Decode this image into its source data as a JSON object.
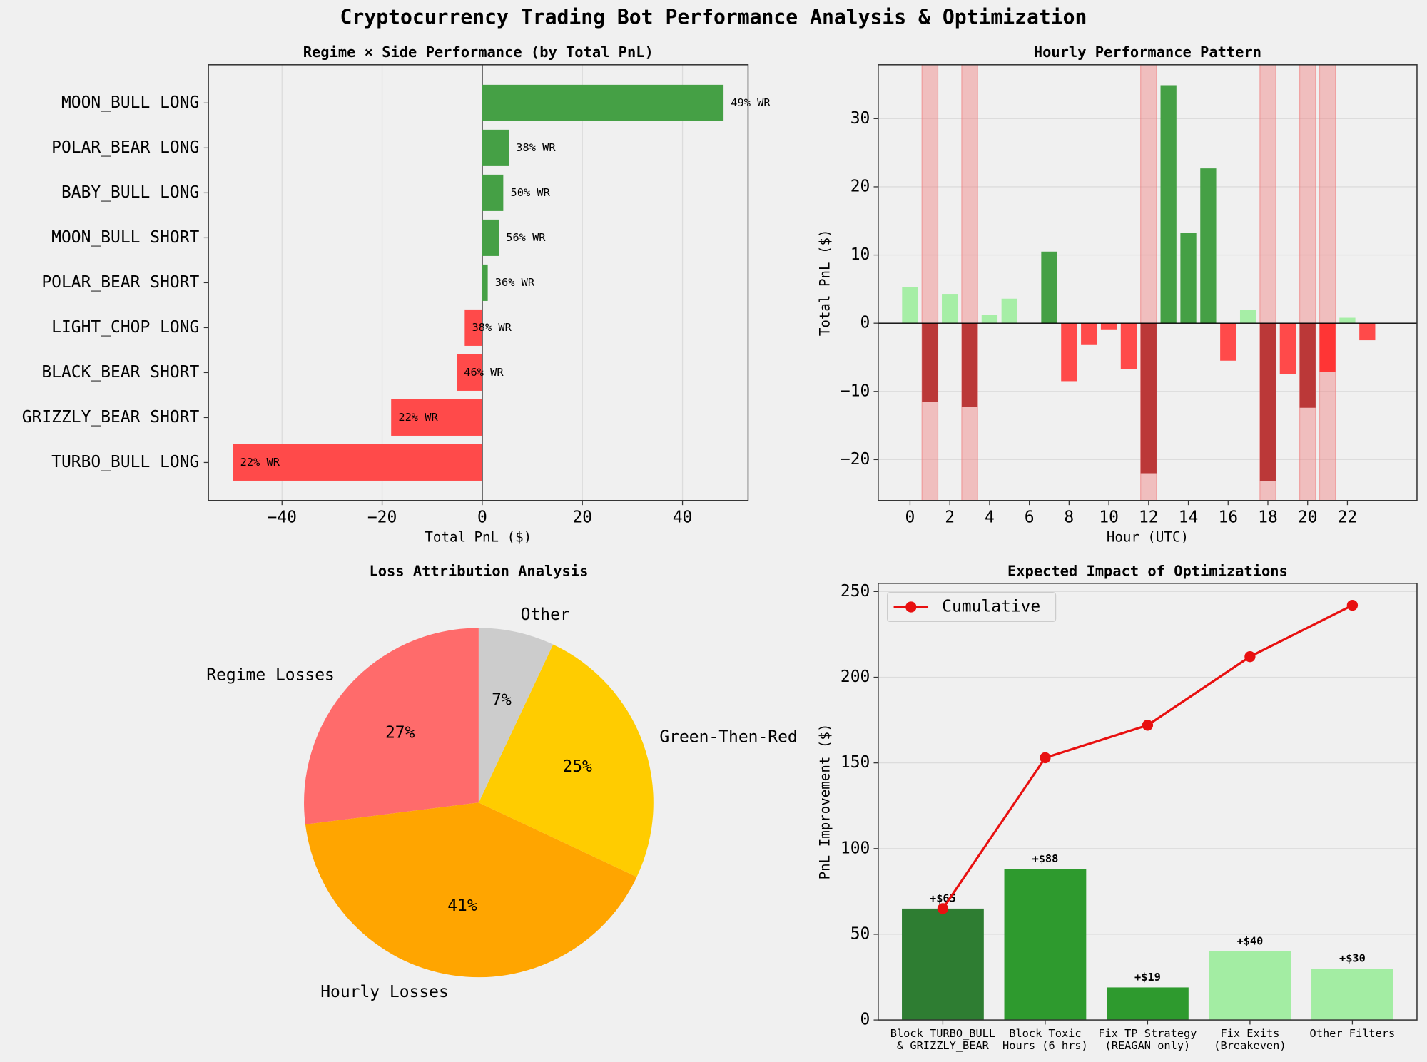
{
  "title": "Cryptocurrency Trading Bot Performance Analysis & Optimization",
  "chart_data": [
    {
      "type": "hbar",
      "title": "Regime × Side Performance (by Total PnL)",
      "xlabel": "Total PnL ($)",
      "categories": [
        "MOON_BULL LONG",
        "POLAR_BEAR LONG",
        "BABY_BULL LONG",
        "MOON_BULL SHORT",
        "POLAR_BEAR SHORT",
        "LIGHT_CHOP LONG",
        "BLACK_BEAR SHORT",
        "GRIZZLY_BEAR SHORT",
        "TURBO_BULL LONG"
      ],
      "values": [
        48.2,
        5.3,
        4.2,
        3.3,
        1.1,
        -3.5,
        -5.1,
        -18.2,
        -49.8
      ],
      "bar_labels": [
        "49% WR",
        "38% WR",
        "50% WR",
        "56% WR",
        "36% WR",
        "38% WR",
        "46% WR",
        "22% WR",
        "22% WR"
      ],
      "positive_color": "#45a045",
      "negative_color": "#ff4a4a",
      "xlim": [
        -54.7,
        53.1
      ],
      "xticks": [
        {
          "value": -40,
          "label": "−40"
        },
        {
          "value": -20,
          "label": "−20"
        },
        0,
        20,
        40
      ],
      "grid": true
    },
    {
      "type": "bar",
      "title": "Hourly Performance Pattern",
      "xlabel": "Hour (UTC)",
      "ylabel": "Total PnL ($)",
      "x": [
        0,
        1,
        2,
        3,
        4,
        5,
        6,
        7,
        8,
        9,
        10,
        11,
        12,
        13,
        14,
        15,
        16,
        17,
        18,
        19,
        20,
        21,
        22,
        23
      ],
      "values": [
        5.3,
        -11.5,
        4.3,
        -12.3,
        1.2,
        3.6,
        0,
        10.5,
        -8.5,
        -3.2,
        -0.9,
        -6.7,
        -22,
        34.9,
        13.2,
        22.7,
        -5.5,
        1.9,
        -23.1,
        -7.5,
        -12.4,
        -7.1,
        0.8,
        -2.5
      ],
      "colors": [
        "#a6eea6",
        "#bb3838",
        "#a6eea6",
        "#bb3838",
        "#a6eea6",
        "#a6eea6",
        "#a6eea6",
        "#45a045",
        "#ff4a4a",
        "#ff4a4a",
        "#ff4a4a",
        "#ff4a4a",
        "#bb3838",
        "#45a045",
        "#45a045",
        "#45a045",
        "#ff4a4a",
        "#a6eea6",
        "#bb3838",
        "#ff4a4a",
        "#bb3838",
        "#ff3535",
        "#a6eea6",
        "#ff4a4a"
      ],
      "highlight_hours": [
        1,
        3,
        12,
        18,
        20,
        21
      ],
      "highlight_color": "#f08080",
      "xlim": [
        -1.6,
        25.5
      ],
      "xticks": [
        0,
        2,
        4,
        6,
        8,
        10,
        12,
        14,
        16,
        18,
        20,
        22
      ],
      "ylim": [
        -26,
        37.9
      ],
      "yticks": [
        {
          "value": -20,
          "label": "−20"
        },
        {
          "value": -10,
          "label": "−10"
        },
        0,
        10,
        20,
        30
      ],
      "grid": true
    },
    {
      "type": "pie",
      "title": "Loss Attribution Analysis",
      "categories": [
        "Regime Losses",
        "Hourly Losses",
        "Green-Then-Red",
        "Other"
      ],
      "values": [
        27,
        41,
        25,
        7
      ],
      "value_labels": [
        "27%",
        "41%",
        "25%",
        "7%"
      ],
      "colors": [
        "#ff6b6b",
        "#ffa500",
        "#ffcc00",
        "#cccccc"
      ]
    },
    {
      "type": "bar_line",
      "title": "Expected Impact of Optimizations",
      "ylabel": "PnL Improvement ($)",
      "categories": [
        [
          "Block TURBO_BULL",
          "& GRIZZLY_BEAR"
        ],
        [
          "Block Toxic",
          "Hours (6 hrs)"
        ],
        [
          "Fix TP Strategy",
          "(REAGAN only)"
        ],
        [
          "Fix Exits",
          "(Breakeven)"
        ],
        [
          "Other Filters"
        ]
      ],
      "values": [
        65,
        88,
        19,
        40,
        30
      ],
      "value_labels": [
        "+$65",
        "+$88",
        "+$19",
        "+$40",
        "+$30"
      ],
      "colors": [
        "#2e7d32",
        "#2e9a2e",
        "#2e9a2e",
        "#a3eda3",
        "#a3eda3"
      ],
      "series": [
        {
          "name": "Cumulative",
          "color": "#e81010",
          "values": [
            65,
            153,
            172,
            212,
            242
          ]
        }
      ],
      "ylim": [
        0,
        254.8
      ],
      "yticks": [
        0,
        50,
        100,
        150,
        200,
        250
      ],
      "legend": "upper left",
      "grid": true
    }
  ]
}
